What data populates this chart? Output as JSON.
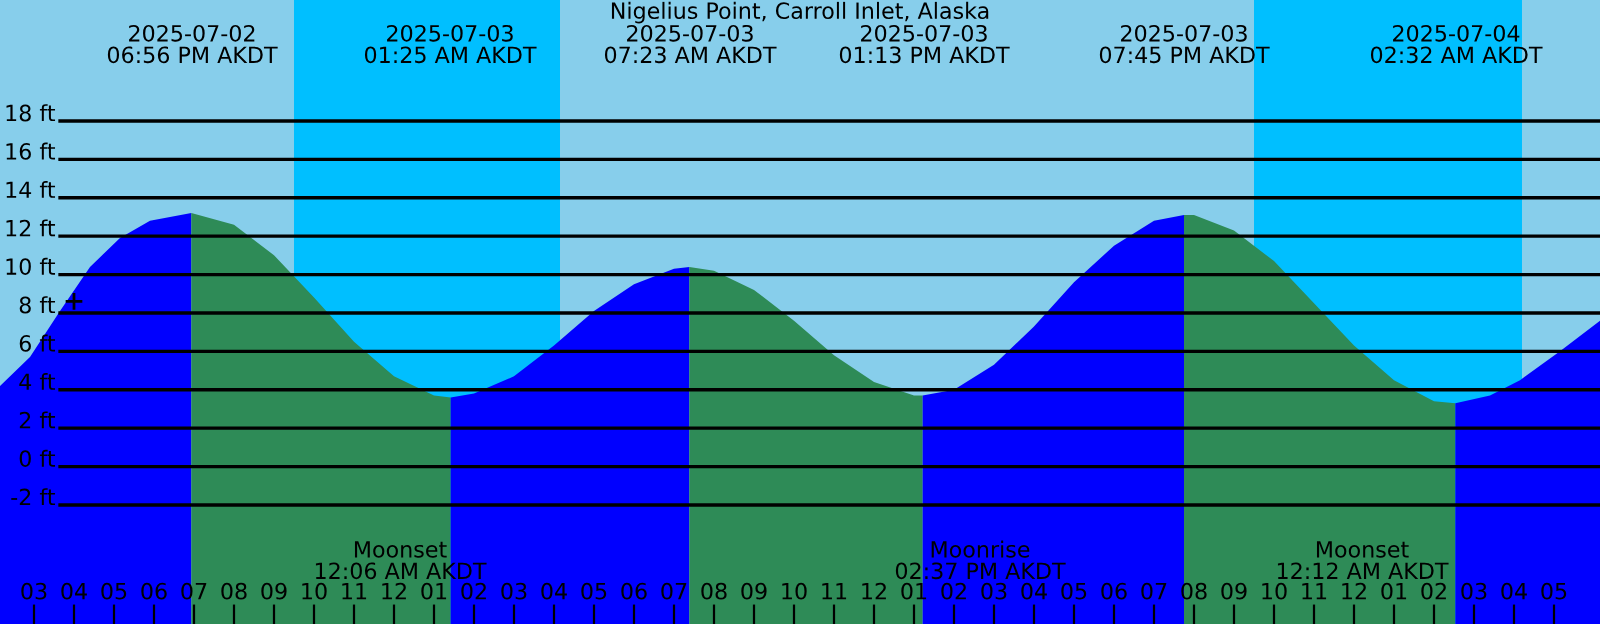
{
  "chart_data": {
    "type": "area",
    "title": "Nigelius Point, Carroll Inlet, Alaska",
    "series": [
      {
        "color": "#0000ff",
        "x": [
          "2025-07-02T14:09",
          "2025-07-02T14:54",
          "2025-07-02T15:39",
          "2025-07-02T16:24",
          "2025-07-02T17:09",
          "2025-07-02T17:54",
          "2025-07-02T18:56"
        ],
        "values": [
          4.2,
          5.7,
          8.1,
          10.4,
          11.9,
          12.8,
          13.2
        ]
      },
      {
        "color": "#2e8b57",
        "x": [
          "2025-07-02T18:56",
          "2025-07-02T20:00",
          "2025-07-02T21:00",
          "2025-07-02T22:00",
          "2025-07-02T23:00",
          "2025-07-03T00:00",
          "2025-07-03T01:00",
          "2025-07-03T01:25"
        ],
        "values": [
          13.2,
          12.6,
          11.0,
          8.8,
          6.5,
          4.7,
          3.7,
          3.6
        ]
      },
      {
        "color": "#0000ff",
        "x": [
          "2025-07-03T01:25",
          "2025-07-03T02:00",
          "2025-07-03T03:00",
          "2025-07-03T04:00",
          "2025-07-03T05:00",
          "2025-07-03T06:00",
          "2025-07-03T07:00",
          "2025-07-03T07:23"
        ],
        "values": [
          3.6,
          3.8,
          4.7,
          6.3,
          8.1,
          9.5,
          10.3,
          10.4
        ]
      },
      {
        "color": "#2e8b57",
        "x": [
          "2025-07-03T07:23",
          "2025-07-03T08:00",
          "2025-07-03T09:00",
          "2025-07-03T10:00",
          "2025-07-03T11:00",
          "2025-07-03T12:00",
          "2025-07-03T13:00",
          "2025-07-03T13:13"
        ],
        "values": [
          10.4,
          10.2,
          9.2,
          7.6,
          5.8,
          4.4,
          3.7,
          3.7
        ]
      },
      {
        "color": "#0000ff",
        "x": [
          "2025-07-03T13:13",
          "2025-07-03T14:00",
          "2025-07-03T15:00",
          "2025-07-03T16:00",
          "2025-07-03T17:00",
          "2025-07-03T18:00",
          "2025-07-03T19:00",
          "2025-07-03T19:45"
        ],
        "values": [
          3.7,
          4.0,
          5.3,
          7.3,
          9.6,
          11.5,
          12.8,
          13.1
        ]
      },
      {
        "color": "#2e8b57",
        "x": [
          "2025-07-03T19:45",
          "2025-07-03T20:00",
          "2025-07-03T21:00",
          "2025-07-03T22:00",
          "2025-07-03T23:00",
          "2025-07-04T00:00",
          "2025-07-04T01:00",
          "2025-07-04T02:00",
          "2025-07-04T02:32"
        ],
        "values": [
          13.1,
          13.1,
          12.3,
          10.7,
          8.5,
          6.3,
          4.5,
          3.4,
          3.3
        ]
      },
      {
        "color": "#0000ff",
        "x": [
          "2025-07-04T02:32",
          "2025-07-04T03:24",
          "2025-07-04T04:09",
          "2025-07-04T05:09",
          "2025-07-04T06:09"
        ],
        "values": [
          3.3,
          3.7,
          4.5,
          6.0,
          7.6
        ]
      },
      {
        "type": "scatter",
        "color": "#000000",
        "marker": "cross",
        "x": [
          "2025-07-02T16:00"
        ],
        "values": [
          8.6
        ]
      }
    ],
    "bands": [
      {
        "axis": "x",
        "from": "2025-07-02T21:30",
        "to": "2025-07-03T04:09",
        "color": "#00bfff"
      },
      {
        "axis": "x",
        "from": "2025-07-03T21:30",
        "to": "2025-07-04T04:12",
        "color": "#00bfff"
      }
    ],
    "annotations": [
      "2025-07-02\n06:56 PM AKDT",
      "2025-07-03\n01:25 AM AKDT",
      "2025-07-03\n07:23 AM AKDT",
      "2025-07-03\n01:13 PM AKDT",
      "2025-07-03\n07:45 PM AKDT",
      "2025-07-04\n02:32 AM AKDT",
      "Moonset\n12:06 AM AKDT",
      "Moonrise\n02:37 PM AKDT",
      "Moonset\n12:12 AM AKDT"
    ],
    "xlim": [
      "2025-07-02T14:09",
      "2025-07-04T06:09"
    ],
    "ylim": [
      -8.2,
      24.3
    ],
    "xticks": [
      {
        "value": "2025-07-02T15:00",
        "label": "03"
      },
      {
        "value": "2025-07-02T16:00",
        "label": "04"
      },
      {
        "value": "2025-07-02T17:00",
        "label": "05"
      },
      {
        "value": "2025-07-02T18:00",
        "label": "06"
      },
      {
        "value": "2025-07-02T19:00",
        "label": "07"
      },
      {
        "value": "2025-07-02T20:00",
        "label": "08"
      },
      {
        "value": "2025-07-02T21:00",
        "label": "09"
      },
      {
        "value": "2025-07-02T22:00",
        "label": "10"
      },
      {
        "value": "2025-07-02T23:00",
        "label": "11"
      },
      {
        "value": "2025-07-03T00:00",
        "label": "12"
      },
      {
        "value": "2025-07-03T01:00",
        "label": "01"
      },
      {
        "value": "2025-07-03T02:00",
        "label": "02"
      },
      {
        "value": "2025-07-03T03:00",
        "label": "03"
      },
      {
        "value": "2025-07-03T04:00",
        "label": "04"
      },
      {
        "value": "2025-07-03T05:00",
        "label": "05"
      },
      {
        "value": "2025-07-03T06:00",
        "label": "06"
      },
      {
        "value": "2025-07-03T07:00",
        "label": "07"
      },
      {
        "value": "2025-07-03T08:00",
        "label": "08"
      },
      {
        "value": "2025-07-03T09:00",
        "label": "09"
      },
      {
        "value": "2025-07-03T10:00",
        "label": "10"
      },
      {
        "value": "2025-07-03T11:00",
        "label": "11"
      },
      {
        "value": "2025-07-03T12:00",
        "label": "12"
      },
      {
        "value": "2025-07-03T13:00",
        "label": "01"
      },
      {
        "value": "2025-07-03T14:00",
        "label": "02"
      },
      {
        "value": "2025-07-03T15:00",
        "label": "03"
      },
      {
        "value": "2025-07-03T16:00",
        "label": "04"
      },
      {
        "value": "2025-07-03T17:00",
        "label": "05"
      },
      {
        "value": "2025-07-03T18:00",
        "label": "06"
      },
      {
        "value": "2025-07-03T19:00",
        "label": "07"
      },
      {
        "value": "2025-07-03T20:00",
        "label": "08"
      },
      {
        "value": "2025-07-03T21:00",
        "label": "09"
      },
      {
        "value": "2025-07-03T22:00",
        "label": "10"
      },
      {
        "value": "2025-07-03T23:00",
        "label": "11"
      },
      {
        "value": "2025-07-04T00:00",
        "label": "12"
      },
      {
        "value": "2025-07-04T01:00",
        "label": "01"
      },
      {
        "value": "2025-07-04T02:00",
        "label": "02"
      },
      {
        "value": "2025-07-04T03:00",
        "label": "03"
      },
      {
        "value": "2025-07-04T04:00",
        "label": "04"
      },
      {
        "value": "2025-07-04T05:00",
        "label": "05"
      }
    ],
    "yticks": [
      {
        "value": -2,
        "label": "-2 ft"
      },
      {
        "value": 0,
        "label": "0 ft"
      },
      {
        "value": 2,
        "label": "2 ft"
      },
      {
        "value": 4,
        "label": "4 ft"
      },
      {
        "value": 6,
        "label": "6 ft"
      },
      {
        "value": 8,
        "label": "8 ft"
      },
      {
        "value": 10,
        "label": "10 ft"
      },
      {
        "value": 12,
        "label": "12 ft"
      },
      {
        "value": 14,
        "label": "14 ft"
      },
      {
        "value": 16,
        "label": "16 ft"
      },
      {
        "value": 18,
        "label": "18 ft"
      }
    ],
    "grid": "y"
  }
}
